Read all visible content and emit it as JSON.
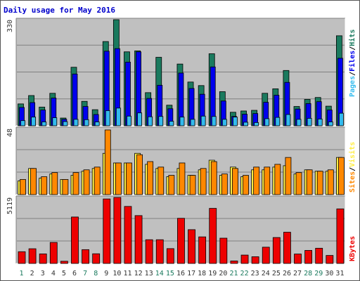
{
  "title": "Daily usage for May 2016",
  "colors": {
    "hits": "#1a7a5e",
    "files": "#0000ee",
    "pages": "#33bbee",
    "visits": "#ffee44",
    "sites": "#ff8800",
    "kbytes": "#ee0000",
    "sep": "#000000",
    "weekend": "#1a7a5e",
    "weekday": "#333333"
  },
  "chart_data": [
    {
      "type": "bar",
      "panel": "top",
      "ymax_label": "330",
      "ylim": [
        0,
        330
      ],
      "grid": true,
      "categories": [
        "1",
        "2",
        "3",
        "4",
        "5",
        "6",
        "7",
        "8",
        "9",
        "10",
        "11",
        "12",
        "13",
        "14",
        "15",
        "16",
        "17",
        "18",
        "19",
        "20",
        "21",
        "22",
        "23",
        "24",
        "25",
        "26",
        "27",
        "28",
        "29",
        "30",
        "31"
      ],
      "weekend_days": [
        "1",
        "7",
        "8",
        "14",
        "15",
        "21",
        "22",
        "28",
        "29"
      ],
      "series": [
        {
          "name": "Hits",
          "values": [
            68,
            94,
            58,
            101,
            24,
            182,
            76,
            50,
            262,
            330,
            230,
            233,
            103,
            213,
            64,
            192,
            136,
            125,
            224,
            106,
            42,
            46,
            48,
            101,
            115,
            172,
            60,
            82,
            88,
            61,
            280
          ]
        },
        {
          "name": "Files",
          "values": [
            57,
            72,
            49,
            86,
            20,
            161,
            60,
            35,
            232,
            240,
            198,
            230,
            85,
            126,
            53,
            164,
            116,
            98,
            183,
            77,
            29,
            36,
            38,
            73,
            95,
            135,
            52,
            69,
            75,
            49,
            210
          ]
        },
        {
          "name": "Pages",
          "values": [
            16,
            27,
            12,
            25,
            13,
            20,
            19,
            12,
            47,
            55,
            30,
            40,
            28,
            29,
            14,
            27,
            20,
            30,
            29,
            20,
            27,
            11,
            10,
            22,
            26,
            35,
            20,
            23,
            21,
            12,
            39
          ]
        }
      ],
      "legend": [
        "Pages",
        "/",
        "Files",
        "/",
        "Hits"
      ]
    },
    {
      "type": "bar",
      "panel": "middle",
      "ymax_label": "48",
      "ylim": [
        0,
        48
      ],
      "grid": true,
      "categories": [
        "1",
        "2",
        "3",
        "4",
        "5",
        "6",
        "7",
        "8",
        "9",
        "10",
        "11",
        "12",
        "13",
        "14",
        "15",
        "16",
        "17",
        "18",
        "19",
        "20",
        "21",
        "22",
        "23",
        "24",
        "25",
        "26",
        "27",
        "28",
        "29",
        "30",
        "31"
      ],
      "series": [
        {
          "name": "Visits",
          "values": [
            10,
            19,
            12,
            15,
            11,
            14,
            17,
            19,
            30,
            23,
            23,
            30,
            22,
            19,
            13,
            19,
            14,
            18,
            25,
            14,
            20,
            13,
            18,
            18,
            20,
            21,
            15,
            18,
            17,
            17,
            27
          ]
        },
        {
          "name": "Sites",
          "values": [
            11,
            19,
            13,
            16,
            11,
            16,
            18,
            20,
            47,
            23,
            23,
            29,
            24,
            20,
            14,
            23,
            14,
            19,
            24,
            15,
            19,
            14,
            20,
            20,
            22,
            27,
            16,
            18,
            17,
            18,
            27
          ]
        }
      ],
      "legend": [
        "Sites",
        "/",
        "Visits"
      ]
    },
    {
      "type": "bar",
      "panel": "bottom",
      "ymax_label": "5119",
      "ylim": [
        0,
        5119
      ],
      "grid": true,
      "categories": [
        "1",
        "2",
        "3",
        "4",
        "5",
        "6",
        "7",
        "8",
        "9",
        "10",
        "11",
        "12",
        "13",
        "14",
        "15",
        "16",
        "17",
        "18",
        "19",
        "20",
        "21",
        "22",
        "23",
        "24",
        "25",
        "26",
        "27",
        "28",
        "29",
        "30",
        "31"
      ],
      "series": [
        {
          "name": "KBytes",
          "values": [
            910,
            1140,
            740,
            1630,
            170,
            3600,
            1070,
            750,
            5000,
            5119,
            4420,
            3710,
            1840,
            1840,
            1150,
            3500,
            2620,
            2060,
            4270,
            1960,
            190,
            650,
            520,
            1260,
            2010,
            2420,
            730,
            1010,
            1180,
            620,
            4230
          ]
        }
      ],
      "legend": [
        "KBytes"
      ]
    }
  ]
}
